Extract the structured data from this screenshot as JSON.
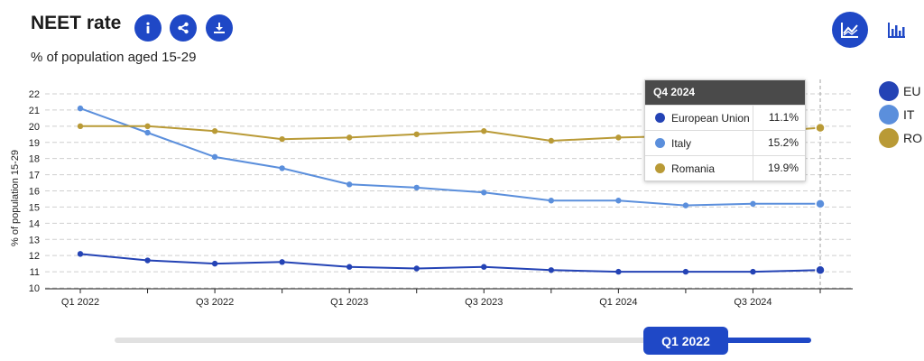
{
  "header": {
    "title": "NEET rate",
    "subtitle": "% of population aged 15-29",
    "buttons": [
      {
        "icon": "info-icon"
      },
      {
        "icon": "share-icon"
      },
      {
        "icon": "download-icon"
      }
    ],
    "view_toggle": [
      {
        "icon": "line-chart-icon",
        "active": true
      },
      {
        "icon": "bar-chart-icon",
        "active": false
      }
    ]
  },
  "colors": {
    "accent": "#1f48c6",
    "eu": "#2443b5",
    "it": "#5b8fdc",
    "ro": "#b99a36"
  },
  "chart_data": {
    "type": "line",
    "ylabel": "% of population 15-29",
    "ylim": [
      10,
      22
    ],
    "yticks": [
      10,
      11,
      12,
      13,
      14,
      15,
      16,
      17,
      18,
      19,
      20,
      21,
      22
    ],
    "x": [
      "Q1 2022",
      "Q2 2022",
      "Q3 2022",
      "Q4 2022",
      "Q1 2023",
      "Q2 2023",
      "Q3 2023",
      "Q4 2023",
      "Q1 2024",
      "Q2 2024",
      "Q3 2024",
      "Q4 2024"
    ],
    "xtick_labels": [
      "Q1 2022",
      "",
      "Q3 2022",
      "",
      "Q1 2023",
      "",
      "Q3 2023",
      "",
      "Q1 2024",
      "",
      "Q3 2024",
      ""
    ],
    "grid": true,
    "series": [
      {
        "name": "European Union",
        "short": "EU",
        "color": "#2443b5",
        "values": [
          12.1,
          11.7,
          11.5,
          11.6,
          11.3,
          11.2,
          11.3,
          11.1,
          11.0,
          11.0,
          11.0,
          11.1
        ]
      },
      {
        "name": "Italy",
        "short": "IT",
        "color": "#5b8fdc",
        "values": [
          21.1,
          19.6,
          18.1,
          17.4,
          16.4,
          16.2,
          15.9,
          15.4,
          15.4,
          15.1,
          15.2,
          15.2
        ]
      },
      {
        "name": "Romania",
        "short": "RO",
        "color": "#b99a36",
        "values": [
          20.0,
          20.0,
          19.7,
          19.2,
          19.3,
          19.5,
          19.7,
          19.1,
          19.3,
          19.4,
          19.6,
          19.9
        ]
      }
    ],
    "highlight_index": 11,
    "tooltip": {
      "title": "Q4 2024",
      "rows": [
        {
          "name": "European Union",
          "value": "11.1%",
          "color": "#2443b5"
        },
        {
          "name": "Italy",
          "value": "15.2%",
          "color": "#5b8fdc"
        },
        {
          "name": "Romania",
          "value": "19.9%",
          "color": "#b99a36"
        }
      ]
    },
    "legend": [
      {
        "label": "EU",
        "color": "#2443b5"
      },
      {
        "label": "IT",
        "color": "#5b8fdc"
      },
      {
        "label": "RO",
        "color": "#b99a36"
      }
    ],
    "legend_placement": "right"
  },
  "slider": {
    "label": "Q1 2022"
  }
}
